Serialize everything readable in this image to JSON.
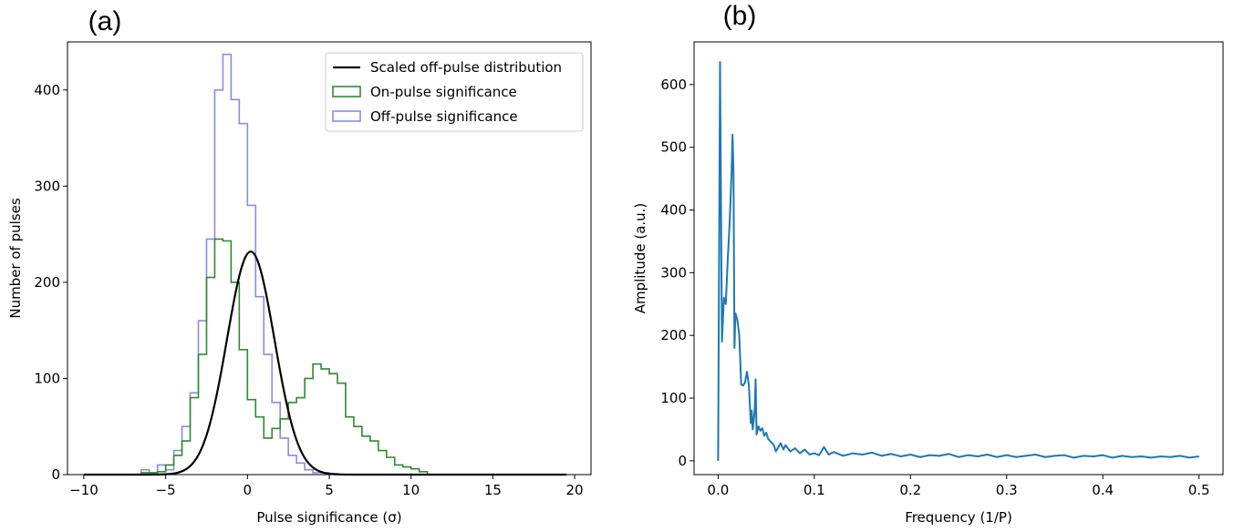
{
  "chart_data": [
    {
      "type": "histogram",
      "panel_label": "(a)",
      "xlabel": "Pulse significance (σ)",
      "ylabel": "Number of pulses",
      "xlim": [
        -11,
        21
      ],
      "ylim": [
        0,
        450
      ],
      "xticks": [
        -10,
        -5,
        0,
        5,
        10,
        15,
        20
      ],
      "yticks": [
        0,
        100,
        200,
        300,
        400
      ],
      "legend_position": "top-right",
      "bin_width": 0.5,
      "series": [
        {
          "name": "Scaled off-pulse distribution",
          "kind": "line",
          "color": "#000000",
          "gaussian": {
            "amplitude": 232,
            "mean": 0.2,
            "sigma": 1.45
          },
          "x_range": [
            -10,
            19.5
          ]
        },
        {
          "name": "On-pulse significance",
          "kind": "step",
          "color": "#2e8b2e",
          "bin_start": -6.5,
          "counts": [
            2,
            2,
            3,
            10,
            20,
            35,
            80,
            125,
            205,
            245,
            243,
            200,
            130,
            78,
            60,
            38,
            48,
            58,
            75,
            80,
            100,
            115,
            110,
            105,
            95,
            60,
            50,
            40,
            35,
            25,
            18,
            10,
            8,
            6,
            3
          ]
        },
        {
          "name": "Off-pulse significance",
          "kind": "step",
          "color": "#8b8be6",
          "bin_start": -6.5,
          "counts": [
            5,
            2,
            10,
            5,
            25,
            50,
            85,
            160,
            245,
            400,
            437,
            390,
            365,
            280,
            185,
            125,
            75,
            38,
            20,
            12,
            5,
            2,
            2,
            1
          ]
        }
      ]
    },
    {
      "type": "line",
      "panel_label": "(b)",
      "xlabel": "Frequency (1/P)",
      "ylabel": "Amplitude (a.u.)",
      "xlim": [
        -0.025,
        0.525
      ],
      "ylim": [
        -22,
        668
      ],
      "xticks": [
        0.0,
        0.1,
        0.2,
        0.3,
        0.4,
        0.5
      ],
      "xtick_labels": [
        "0.0",
        "0.1",
        "0.2",
        "0.3",
        "0.4",
        "0.5"
      ],
      "yticks": [
        0,
        100,
        200,
        300,
        400,
        500,
        600
      ],
      "series": [
        {
          "name": "",
          "color": "#1f77b4",
          "points": [
            [
              0.0,
              0
            ],
            [
              0.002,
              636
            ],
            [
              0.004,
              190
            ],
            [
              0.006,
              260
            ],
            [
              0.008,
              250
            ],
            [
              0.01,
              320
            ],
            [
              0.012,
              380
            ],
            [
              0.014,
              460
            ],
            [
              0.015,
              520
            ],
            [
              0.016,
              460
            ],
            [
              0.017,
              180
            ],
            [
              0.018,
              235
            ],
            [
              0.02,
              225
            ],
            [
              0.022,
              200
            ],
            [
              0.024,
              122
            ],
            [
              0.026,
              120
            ],
            [
              0.028,
              125
            ],
            [
              0.03,
              142
            ],
            [
              0.032,
              120
            ],
            [
              0.034,
              60
            ],
            [
              0.035,
              80
            ],
            [
              0.036,
              50
            ],
            [
              0.038,
              80
            ],
            [
              0.039,
              130
            ],
            [
              0.04,
              42
            ],
            [
              0.042,
              55
            ],
            [
              0.044,
              48
            ],
            [
              0.046,
              52
            ],
            [
              0.048,
              40
            ],
            [
              0.05,
              45
            ],
            [
              0.052,
              35
            ],
            [
              0.055,
              30
            ],
            [
              0.058,
              25
            ],
            [
              0.06,
              15
            ],
            [
              0.062,
              20
            ],
            [
              0.065,
              28
            ],
            [
              0.068,
              18
            ],
            [
              0.07,
              25
            ],
            [
              0.075,
              15
            ],
            [
              0.08,
              20
            ],
            [
              0.085,
              12
            ],
            [
              0.09,
              18
            ],
            [
              0.095,
              10
            ],
            [
              0.1,
              12
            ],
            [
              0.105,
              9
            ],
            [
              0.11,
              22
            ],
            [
              0.115,
              10
            ],
            [
              0.12,
              14
            ],
            [
              0.13,
              8
            ],
            [
              0.14,
              12
            ],
            [
              0.15,
              10
            ],
            [
              0.16,
              13
            ],
            [
              0.17,
              8
            ],
            [
              0.18,
              11
            ],
            [
              0.19,
              7
            ],
            [
              0.2,
              10
            ],
            [
              0.21,
              6
            ],
            [
              0.22,
              9
            ],
            [
              0.23,
              8
            ],
            [
              0.24,
              11
            ],
            [
              0.25,
              6
            ],
            [
              0.26,
              9
            ],
            [
              0.27,
              7
            ],
            [
              0.28,
              10
            ],
            [
              0.29,
              6
            ],
            [
              0.3,
              9
            ],
            [
              0.31,
              6
            ],
            [
              0.32,
              8
            ],
            [
              0.33,
              10
            ],
            [
              0.34,
              6
            ],
            [
              0.35,
              8
            ],
            [
              0.36,
              9
            ],
            [
              0.37,
              5
            ],
            [
              0.38,
              8
            ],
            [
              0.39,
              7
            ],
            [
              0.4,
              9
            ],
            [
              0.41,
              5
            ],
            [
              0.42,
              8
            ],
            [
              0.43,
              6
            ],
            [
              0.44,
              7
            ],
            [
              0.45,
              5
            ],
            [
              0.46,
              7
            ],
            [
              0.47,
              6
            ],
            [
              0.48,
              8
            ],
            [
              0.49,
              5
            ],
            [
              0.5,
              7
            ]
          ]
        }
      ]
    }
  ]
}
